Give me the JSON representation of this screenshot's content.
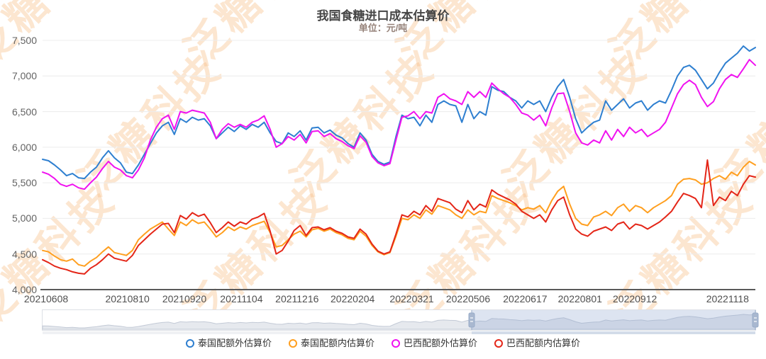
{
  "title": "我国食糖进口成本估算价",
  "subtitle": "单位：元/吨",
  "watermark": {
    "text": "泛糖科技",
    "color": "#f7b87c",
    "opacity": 0.35
  },
  "colors": {
    "grid": "#ececec",
    "axis_line": "#5a5a5a",
    "y_label": "#636363",
    "x_label": "#4f4f4f",
    "title": "#464646",
    "subtitle": "#96837a",
    "legend_text": "#333333",
    "slider_border": "#dde0e6",
    "slider_shadow_fill": "#e6e9ee",
    "slider_shadow_line": "#c3cad6",
    "slider_window_fill": "rgba(142,167,207,0.30)",
    "slider_edge": "#98abc8",
    "slider_handle": "#a9b8d0",
    "slider_track": "#f0f1f4",
    "slider_track_selected": "#d3dce9"
  },
  "chart_data": {
    "type": "line",
    "title": "我国食糖进口成本估算价",
    "ylabel": "元/吨",
    "ylim": [
      4000,
      7500
    ],
    "grid": true,
    "legend_position": "bottom",
    "ytick_values": [
      4000,
      4500,
      5000,
      5500,
      6000,
      6500,
      7000,
      7500
    ],
    "ytick_labels": [
      "4,000",
      "4,500",
      "5,000",
      "5,500",
      "6,000",
      "6,500",
      "7,000",
      "7,500"
    ],
    "x_tick_labels": [
      "20210608",
      "20210810",
      "20210920",
      "20211104",
      "20211216",
      "20220204",
      "20220321",
      "20220506",
      "20220617",
      "20220801",
      "20220912",
      "20221118"
    ],
    "x_tick_pct": [
      0.5,
      11.9,
      19.9,
      27.9,
      35.7,
      43.5,
      51.8,
      59.7,
      67.7,
      75.4,
      83.1,
      96.1
    ],
    "x_range_dates": [
      "20210608",
      "20221118"
    ],
    "series": [
      {
        "name": "泰国配额外估算价",
        "color": "#2e7fd0",
        "values": [
          5830,
          5810,
          5750,
          5680,
          5600,
          5630,
          5570,
          5560,
          5650,
          5720,
          5850,
          5950,
          5850,
          5780,
          5650,
          5630,
          5750,
          5900,
          6050,
          6200,
          6300,
          6350,
          6180,
          6400,
          6350,
          6420,
          6380,
          6400,
          6300,
          6120,
          6200,
          6280,
          6220,
          6300,
          6250,
          6320,
          6280,
          6350,
          6200,
          6080,
          6050,
          6200,
          6150,
          6230,
          6100,
          6270,
          6280,
          6200,
          6240,
          6170,
          6130,
          6050,
          6000,
          6200,
          6100,
          5900,
          5800,
          5760,
          5790,
          6150,
          6450,
          6400,
          6420,
          6300,
          6450,
          6350,
          6600,
          6650,
          6600,
          6580,
          6350,
          6600,
          6400,
          6500,
          6450,
          6850,
          6800,
          6780,
          6700,
          6650,
          6550,
          6650,
          6600,
          6650,
          6500,
          6700,
          6850,
          6950,
          6700,
          6400,
          6200,
          6280,
          6350,
          6380,
          6650,
          6520,
          6600,
          6680,
          6550,
          6620,
          6650,
          6520,
          6600,
          6650,
          6620,
          6800,
          7000,
          7120,
          7150,
          7080,
          6950,
          6820,
          6900,
          7050,
          7180,
          7250,
          7320,
          7420,
          7350,
          7400
        ]
      },
      {
        "name": "泰国配额内估算价",
        "color": "#ff9f1f",
        "values": [
          4550,
          4530,
          4470,
          4420,
          4400,
          4430,
          4350,
          4330,
          4400,
          4450,
          4530,
          4600,
          4520,
          4500,
          4480,
          4550,
          4700,
          4780,
          4850,
          4900,
          4950,
          4850,
          4760,
          4950,
          4900,
          4980,
          4930,
          4950,
          4850,
          4740,
          4800,
          4880,
          4830,
          4880,
          4850,
          4900,
          4930,
          4960,
          4800,
          4600,
          4620,
          4700,
          4780,
          4820,
          4740,
          4840,
          4860,
          4820,
          4850,
          4800,
          4770,
          4720,
          4700,
          4820,
          4750,
          4620,
          4530,
          4490,
          4520,
          4750,
          5000,
          4980,
          5050,
          5000,
          5120,
          5060,
          5180,
          5150,
          5120,
          5050,
          5000,
          5120,
          5050,
          5100,
          5080,
          5320,
          5280,
          5250,
          5220,
          5180,
          5120,
          5150,
          5130,
          5180,
          5080,
          5250,
          5380,
          5450,
          5200,
          5000,
          4920,
          4900,
          5020,
          5050,
          5100,
          5040,
          5150,
          5200,
          5100,
          5180,
          5150,
          5080,
          5150,
          5200,
          5250,
          5320,
          5480,
          5550,
          5560,
          5540,
          5480,
          5500,
          5560,
          5600,
          5550,
          5650,
          5600,
          5720,
          5800,
          5750
        ]
      },
      {
        "name": "巴西配额外估算价",
        "color": "#f012f0",
        "values": [
          5650,
          5620,
          5560,
          5480,
          5450,
          5480,
          5430,
          5410,
          5500,
          5580,
          5700,
          5800,
          5720,
          5680,
          5600,
          5570,
          5680,
          5850,
          6100,
          6280,
          6400,
          6450,
          6250,
          6500,
          6480,
          6520,
          6500,
          6480,
          6350,
          6120,
          6250,
          6330,
          6280,
          6320,
          6280,
          6350,
          6380,
          6440,
          6250,
          6000,
          6050,
          6150,
          6100,
          6180,
          6060,
          6220,
          6230,
          6150,
          6190,
          6120,
          6080,
          6020,
          5980,
          6160,
          6070,
          5870,
          5780,
          5740,
          5770,
          6100,
          6420,
          6440,
          6500,
          6400,
          6500,
          6480,
          6700,
          6750,
          6680,
          6650,
          6600,
          6780,
          6700,
          6780,
          6700,
          6900,
          6820,
          6750,
          6700,
          6600,
          6480,
          6450,
          6380,
          6450,
          6300,
          6550,
          6750,
          6760,
          6500,
          6200,
          6060,
          6030,
          6100,
          6060,
          6230,
          6100,
          6250,
          6150,
          6280,
          6200,
          6250,
          6150,
          6200,
          6250,
          6350,
          6550,
          6750,
          6880,
          6940,
          6880,
          6700,
          6570,
          6640,
          6820,
          6950,
          7020,
          6980,
          7100,
          7230,
          7150
        ]
      },
      {
        "name": "巴西配额内估算价",
        "color": "#e42618",
        "values": [
          4420,
          4380,
          4330,
          4300,
          4280,
          4250,
          4230,
          4220,
          4300,
          4350,
          4420,
          4500,
          4440,
          4420,
          4400,
          4480,
          4620,
          4700,
          4780,
          4850,
          4920,
          4930,
          4800,
          5040,
          4990,
          5080,
          5030,
          5060,
          4940,
          4800,
          4870,
          4950,
          4890,
          4950,
          4920,
          4990,
          5020,
          5070,
          4820,
          4500,
          4550,
          4680,
          4830,
          4900,
          4760,
          4870,
          4880,
          4840,
          4870,
          4820,
          4790,
          4740,
          4720,
          4850,
          4780,
          4640,
          4540,
          4500,
          4530,
          4780,
          5050,
          5020,
          5100,
          5050,
          5180,
          5100,
          5280,
          5250,
          5220,
          5130,
          5080,
          5250,
          5120,
          5200,
          5160,
          5400,
          5340,
          5300,
          5260,
          5200,
          5100,
          5050,
          5000,
          5050,
          4950,
          5120,
          5250,
          5300,
          5050,
          4850,
          4780,
          4750,
          4820,
          4850,
          4880,
          4830,
          4920,
          4950,
          4850,
          4920,
          4900,
          4850,
          4900,
          4950,
          5020,
          5100,
          5230,
          5350,
          5320,
          5280,
          5150,
          5820,
          5180,
          5300,
          5250,
          5380,
          5320,
          5480,
          5600,
          5580
        ]
      }
    ]
  },
  "datazoom": {
    "start_pct": 60.2,
    "end_pct": 100
  },
  "legend": {
    "items": [
      {
        "label": "泰国配额外估算价",
        "color": "#2e7fd0"
      },
      {
        "label": "泰国配额内估算价",
        "color": "#ff9f1f"
      },
      {
        "label": "巴西配额外估算价",
        "color": "#f012f0"
      },
      {
        "label": "巴西配额内估算价",
        "color": "#e42618"
      }
    ]
  }
}
